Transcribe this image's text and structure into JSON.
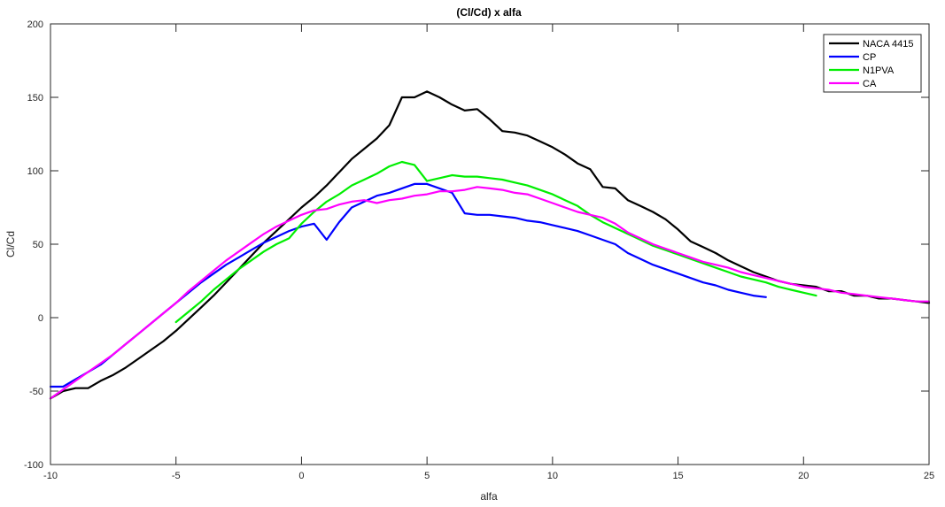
{
  "chart_data": {
    "type": "line",
    "title": "(Cl/Cd) x alfa",
    "xlabel": "alfa",
    "ylabel": "Cl/Cd",
    "xlim": [
      -10,
      25
    ],
    "ylim": [
      -100,
      200
    ],
    "xticks": [
      -10,
      -5,
      0,
      5,
      10,
      15,
      20,
      25
    ],
    "yticks": [
      -100,
      -50,
      0,
      50,
      100,
      150,
      200
    ],
    "grid": false,
    "legend_position": "top-right",
    "series": [
      {
        "name": "NACA 4415",
        "color": "#000000",
        "x": [
          -10,
          -9.5,
          -9,
          -8.5,
          -8,
          -7.5,
          -7,
          -6.5,
          -6,
          -5.5,
          -5,
          -4.5,
          -4,
          -3.5,
          -3,
          -2.5,
          -2,
          -1.5,
          -1,
          -0.5,
          0,
          0.5,
          1,
          1.5,
          2,
          2.5,
          3,
          3.5,
          4,
          4.5,
          5,
          5.5,
          6,
          6.5,
          7,
          7.5,
          8,
          8.5,
          9,
          9.5,
          10,
          10.5,
          11,
          11.5,
          12,
          12.5,
          13,
          13.5,
          14,
          14.5,
          15,
          15.5,
          16,
          16.5,
          17,
          17.5,
          18,
          18.5,
          19,
          19.5,
          20,
          20.5,
          21,
          21.5,
          22,
          22.5,
          23,
          23.5,
          24,
          24.5,
          25
        ],
        "y": [
          -55,
          -50,
          -48,
          -48,
          -43,
          -39,
          -34,
          -28,
          -22,
          -16,
          -9,
          -1,
          7,
          15,
          24,
          33,
          42,
          51,
          59,
          67,
          75,
          82,
          90,
          99,
          108,
          115,
          122,
          131,
          150,
          150,
          154,
          150,
          145,
          141,
          142,
          135,
          127,
          126,
          124,
          120,
          116,
          111,
          105,
          101,
          89,
          88,
          80,
          76,
          72,
          67,
          60,
          52,
          48,
          44,
          39,
          35,
          31,
          28,
          25,
          23,
          22,
          21,
          18,
          18,
          15,
          15,
          13,
          13,
          12,
          11,
          10
        ]
      },
      {
        "name": "CP",
        "color": "#0000ff",
        "x": [
          -10,
          -9.5,
          -9,
          -8.5,
          -8,
          -7.5,
          -7,
          -6.5,
          -6,
          -5.5,
          -5,
          -4.5,
          -4,
          -3.5,
          -3,
          -2.5,
          -2,
          -1.5,
          -1,
          -0.5,
          0,
          0.5,
          1,
          1.5,
          2,
          2.5,
          3,
          3.5,
          4,
          4.5,
          5,
          5.5,
          6,
          6.5,
          7,
          7.5,
          8,
          8.5,
          9,
          9.5,
          10,
          10.5,
          11,
          11.5,
          12,
          12.5,
          13,
          13.5,
          14,
          14.5,
          15,
          15.5,
          16,
          16.5,
          17,
          17.5,
          18,
          18.5
        ],
        "y": [
          -47,
          -47,
          -42,
          -37,
          -32,
          -25,
          -18,
          -11,
          -4,
          3,
          10,
          17,
          24,
          30,
          36,
          41,
          46,
          51,
          55,
          59,
          62,
          64,
          53,
          65,
          75,
          79,
          83,
          85,
          88,
          91,
          91,
          88,
          85,
          71,
          70,
          70,
          69,
          68,
          66,
          65,
          63,
          61,
          59,
          56,
          53,
          50,
          44,
          40,
          36,
          33,
          30,
          27,
          24,
          22,
          19,
          17,
          15,
          14
        ]
      },
      {
        "name": "N1PVA",
        "color": "#00ee00",
        "x": [
          -5,
          -4.5,
          -4,
          -3.5,
          -3,
          -2.5,
          -2,
          -1.5,
          -1,
          -0.5,
          0,
          0.5,
          1,
          1.5,
          2,
          2.5,
          3,
          3.5,
          4,
          4.5,
          5,
          5.5,
          6,
          6.5,
          7,
          7.5,
          8,
          8.5,
          9,
          9.5,
          10,
          10.5,
          11,
          11.5,
          12,
          12.5,
          13,
          13.5,
          14,
          14.5,
          15,
          15.5,
          16,
          16.5,
          17,
          17.5,
          18,
          18.5,
          19,
          19.5,
          20,
          20.5
        ],
        "y": [
          -3,
          4,
          11,
          19,
          26,
          33,
          39,
          45,
          50,
          54,
          64,
          72,
          79,
          84,
          90,
          94,
          98,
          103,
          106,
          104,
          93,
          95,
          97,
          96,
          96,
          95,
          94,
          92,
          90,
          87,
          84,
          80,
          76,
          70,
          65,
          61,
          57,
          53,
          49,
          46,
          43,
          40,
          37,
          34,
          31,
          28,
          26,
          24,
          21,
          19,
          17,
          15
        ]
      },
      {
        "name": "CA",
        "color": "#ff00ff",
        "x": [
          -10,
          -9.5,
          -9,
          -8.5,
          -8,
          -7.5,
          -7,
          -6.5,
          -6,
          -5.5,
          -5,
          -4.5,
          -4,
          -3.5,
          -3,
          -2.5,
          -2,
          -1.5,
          -1,
          -0.5,
          0,
          0.5,
          1,
          1.5,
          2,
          2.5,
          3,
          3.5,
          4,
          4.5,
          5,
          5.5,
          6,
          6.5,
          7,
          7.5,
          8,
          8.5,
          9,
          9.5,
          10,
          10.5,
          11,
          11.5,
          12,
          12.5,
          13,
          13.5,
          14,
          14.5,
          15,
          15.5,
          16,
          16.5,
          17,
          17.5,
          18,
          18.5,
          19,
          19.5,
          20,
          20.5,
          21,
          21.5,
          22,
          22.5,
          23,
          23.5,
          24,
          24.5,
          25
        ],
        "y": [
          -55,
          -49,
          -43,
          -37,
          -31,
          -25,
          -18,
          -11,
          -4,
          3,
          10,
          18,
          25,
          32,
          39,
          45,
          51,
          57,
          62,
          66,
          70,
          73,
          74,
          77,
          79,
          80,
          78,
          80,
          81,
          83,
          84,
          86,
          86,
          87,
          89,
          88,
          87,
          85,
          84,
          81,
          78,
          75,
          72,
          70,
          68,
          64,
          58,
          54,
          50,
          47,
          44,
          41,
          38,
          36,
          34,
          31,
          29,
          27,
          25,
          23,
          21,
          20,
          19,
          17,
          16,
          15,
          14,
          13,
          12,
          11,
          11
        ]
      }
    ]
  }
}
